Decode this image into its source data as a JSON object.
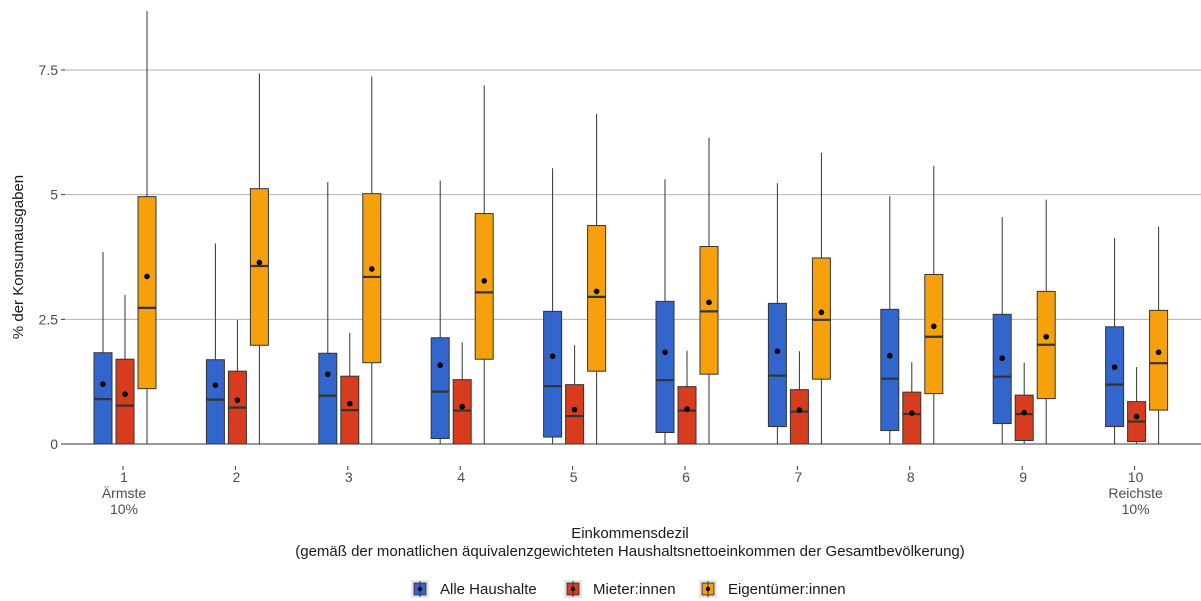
{
  "chart_data": {
    "type": "boxplot",
    "ylabel": "% der Konsumausgaben",
    "xlabel_lines": [
      "Einkommensdezil",
      "(gemäß der monatlichen äquivalenzgewichteten Haushaltsnettoeinkommen der Gesamtbevölkerung)"
    ],
    "ylim": [
      -0.1,
      8.7
    ],
    "yticks": [
      {
        "value": 0,
        "label": "0"
      },
      {
        "value": 2.5,
        "label": "2.5"
      },
      {
        "value": 5,
        "label": "5"
      },
      {
        "value": 7.5,
        "label": "7.5"
      }
    ],
    "grid": "horizontal",
    "legend_position": "bottom",
    "categories": [
      {
        "lines": [
          "1",
          "Ärmste",
          "10%"
        ]
      },
      {
        "lines": [
          "2"
        ]
      },
      {
        "lines": [
          "3"
        ]
      },
      {
        "lines": [
          "4"
        ]
      },
      {
        "lines": [
          "5"
        ]
      },
      {
        "lines": [
          "6"
        ]
      },
      {
        "lines": [
          "7"
        ]
      },
      {
        "lines": [
          "8"
        ]
      },
      {
        "lines": [
          "9"
        ]
      },
      {
        "lines": [
          "10",
          "Reichste",
          "10%"
        ]
      }
    ],
    "series": [
      {
        "name": "Alle Haushalte",
        "color": "#3366cc",
        "boxes": [
          {
            "min": 0,
            "q1": 0,
            "median": 0.9,
            "q3": 1.83,
            "max": 3.85,
            "mean": 1.2
          },
          {
            "min": 0,
            "q1": 0,
            "median": 0.89,
            "q3": 1.69,
            "max": 4.02,
            "mean": 1.18
          },
          {
            "min": 0,
            "q1": 0,
            "median": 0.97,
            "q3": 1.82,
            "max": 5.25,
            "mean": 1.4
          },
          {
            "min": 0,
            "q1": 0.11,
            "median": 1.05,
            "q3": 2.13,
            "max": 5.28,
            "mean": 1.58
          },
          {
            "min": 0,
            "q1": 0.14,
            "median": 1.16,
            "q3": 2.66,
            "max": 5.53,
            "mean": 1.76
          },
          {
            "min": 0,
            "q1": 0.23,
            "median": 1.28,
            "q3": 2.86,
            "max": 5.31,
            "mean": 1.84
          },
          {
            "min": 0,
            "q1": 0.35,
            "median": 1.37,
            "q3": 2.82,
            "max": 5.23,
            "mean": 1.86
          },
          {
            "min": 0,
            "q1": 0.27,
            "median": 1.31,
            "q3": 2.7,
            "max": 4.97,
            "mean": 1.77
          },
          {
            "min": 0,
            "q1": 0.41,
            "median": 1.35,
            "q3": 2.6,
            "max": 4.55,
            "mean": 1.72
          },
          {
            "min": 0,
            "q1": 0.35,
            "median": 1.19,
            "q3": 2.35,
            "max": 4.13,
            "mean": 1.54
          }
        ]
      },
      {
        "name": "Mieter:innen",
        "color": "#d83c1e",
        "boxes": [
          {
            "min": 0,
            "q1": 0,
            "median": 0.77,
            "q3": 1.7,
            "max": 2.99,
            "mean": 1.0
          },
          {
            "min": 0,
            "q1": 0,
            "median": 0.73,
            "q3": 1.46,
            "max": 2.49,
            "mean": 0.88
          },
          {
            "min": 0,
            "q1": 0,
            "median": 0.68,
            "q3": 1.36,
            "max": 2.23,
            "mean": 0.81
          },
          {
            "min": 0,
            "q1": 0,
            "median": 0.67,
            "q3": 1.29,
            "max": 2.04,
            "mean": 0.75
          },
          {
            "min": 0,
            "q1": 0,
            "median": 0.56,
            "q3": 1.19,
            "max": 1.98,
            "mean": 0.69
          },
          {
            "min": 0,
            "q1": 0,
            "median": 0.67,
            "q3": 1.15,
            "max": 1.87,
            "mean": 0.7
          },
          {
            "min": 0,
            "q1": 0,
            "median": 0.65,
            "q3": 1.09,
            "max": 1.86,
            "mean": 0.68
          },
          {
            "min": 0,
            "q1": 0,
            "median": 0.6,
            "q3": 1.04,
            "max": 1.64,
            "mean": 0.62
          },
          {
            "min": 0,
            "q1": 0.07,
            "median": 0.6,
            "q3": 0.98,
            "max": 1.63,
            "mean": 0.63
          },
          {
            "min": 0,
            "q1": 0.05,
            "median": 0.45,
            "q3": 0.85,
            "max": 1.54,
            "mean": 0.55
          }
        ]
      },
      {
        "name": "Eigentümer:innen",
        "color": "#f6a10b",
        "boxes": [
          {
            "min": 0,
            "q1": 1.11,
            "median": 2.73,
            "q3": 4.96,
            "max": 8.68,
            "mean": 3.36
          },
          {
            "min": 0,
            "q1": 1.98,
            "median": 3.57,
            "q3": 5.12,
            "max": 7.43,
            "mean": 3.64
          },
          {
            "min": 0,
            "q1": 1.63,
            "median": 3.35,
            "q3": 5.02,
            "max": 7.37,
            "mean": 3.51
          },
          {
            "min": 0,
            "q1": 1.7,
            "median": 3.04,
            "q3": 4.62,
            "max": 7.19,
            "mean": 3.27
          },
          {
            "min": 0,
            "q1": 1.46,
            "median": 2.95,
            "q3": 4.38,
            "max": 6.62,
            "mean": 3.06
          },
          {
            "min": 0,
            "q1": 1.4,
            "median": 2.66,
            "q3": 3.96,
            "max": 6.14,
            "mean": 2.84
          },
          {
            "min": 0,
            "q1": 1.3,
            "median": 2.49,
            "q3": 3.73,
            "max": 5.84,
            "mean": 2.64
          },
          {
            "min": 0,
            "q1": 1.01,
            "median": 2.15,
            "q3": 3.4,
            "max": 5.58,
            "mean": 2.36
          },
          {
            "min": 0,
            "q1": 0.91,
            "median": 1.99,
            "q3": 3.06,
            "max": 4.9,
            "mean": 2.15
          },
          {
            "min": 0,
            "q1": 0.68,
            "median": 1.62,
            "q3": 2.68,
            "max": 4.36,
            "mean": 1.84
          }
        ]
      }
    ]
  }
}
